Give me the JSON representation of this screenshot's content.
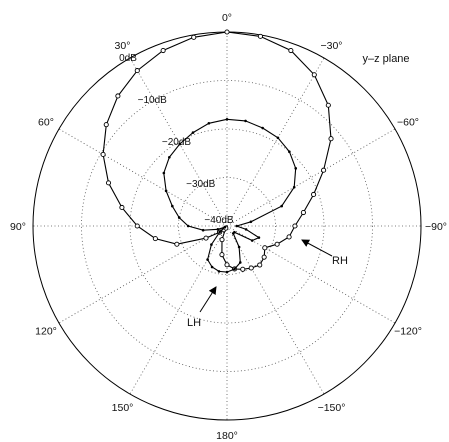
{
  "chart_data": {
    "type": "polar",
    "plane_label": "y–z plane",
    "radial_axis": {
      "range_db": [
        -40,
        0
      ],
      "ring_values_db": [
        0,
        -10,
        -20,
        -30,
        -40
      ],
      "ring_labels": [
        "0dB",
        "−10dB",
        "−20dB",
        "−30dB",
        "−40dB"
      ],
      "ring_label_angle_deg": 30,
      "grid": "dotted"
    },
    "angular_axis": {
      "zero_at": "top",
      "direction": "counterclockwise",
      "tick_angles_deg": [
        0,
        30,
        60,
        90,
        120,
        150,
        180,
        -150,
        -120,
        -90,
        -60,
        -30
      ],
      "tick_labels": [
        "0°",
        "30°",
        "60°",
        "90°",
        "120°",
        "150°",
        "180°",
        "−150°",
        "−120°",
        "−90°",
        "−60°",
        "−30°"
      ]
    },
    "series": [
      {
        "name": "RH",
        "marker": "circle",
        "angles_deg": [
          0,
          10,
          20,
          30,
          40,
          50,
          60,
          70,
          80,
          90,
          100,
          110,
          120,
          130,
          140,
          150,
          160,
          170,
          180,
          -170,
          -160,
          -150,
          -140,
          -130,
          -120,
          -110,
          -100,
          -90,
          -80,
          -70,
          -60,
          -50,
          -40,
          -30,
          -20,
          -10
        ],
        "values_db": [
          0,
          -0.5,
          -1.5,
          -3,
          -5,
          -7.5,
          -10.5,
          -14,
          -18,
          -21.5,
          -25,
          -29,
          -35,
          -38,
          -39,
          -39.5,
          -37,
          -34,
          -32,
          -31,
          -30.5,
          -30,
          -29.5,
          -30,
          -31,
          -29,
          -27,
          -26,
          -24,
          -21,
          -17,
          -12,
          -7.5,
          -4,
          -1.5,
          -0.3
        ]
      },
      {
        "name": "LH",
        "marker": "dot",
        "angles_deg": [
          0,
          10,
          20,
          30,
          40,
          50,
          60,
          70,
          80,
          90,
          100,
          110,
          120,
          130,
          140,
          150,
          160,
          170,
          180,
          -170,
          -160,
          -150,
          -140,
          -130,
          -120,
          -110,
          -100,
          -90,
          -80,
          -70,
          -60,
          -50,
          -40,
          -30,
          -20,
          -10
        ],
        "values_db": [
          -18,
          -18.5,
          -19.5,
          -20.5,
          -21.5,
          -23,
          -25.5,
          -28,
          -30,
          -32,
          -35,
          -38,
          -39.5,
          -38,
          -35,
          -32,
          -31,
          -30.5,
          -30.5,
          -31,
          -32,
          -35,
          -38,
          -38,
          -34,
          -33,
          -36,
          -38,
          -35,
          -28,
          -24,
          -21.5,
          -20,
          -19,
          -18.5,
          -18
        ]
      }
    ],
    "annotations": [
      {
        "text": "RH",
        "points_to_series": "RH"
      },
      {
        "text": "LH",
        "points_to_series": "LH"
      }
    ]
  }
}
